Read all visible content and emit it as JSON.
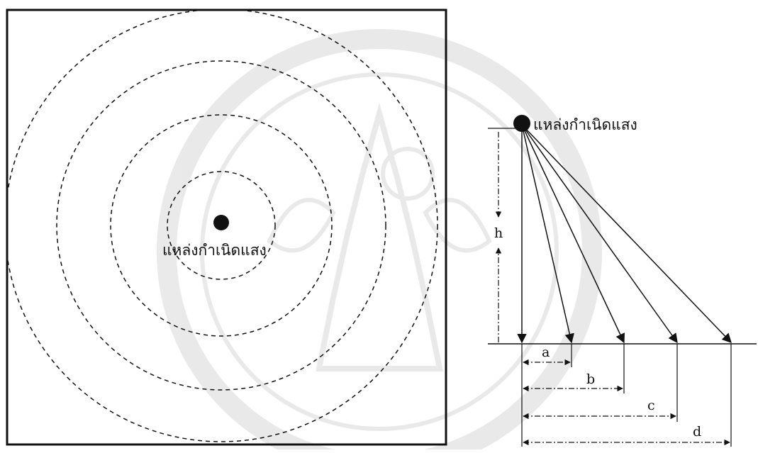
{
  "left_panel": {
    "source_label": "แหล่งกำเนิดแสง"
  },
  "right_panel": {
    "source_label": "แหล่งกำเนิดแสง",
    "height_label": "h",
    "distance_labels": [
      "a",
      "b",
      "c",
      "d"
    ]
  }
}
